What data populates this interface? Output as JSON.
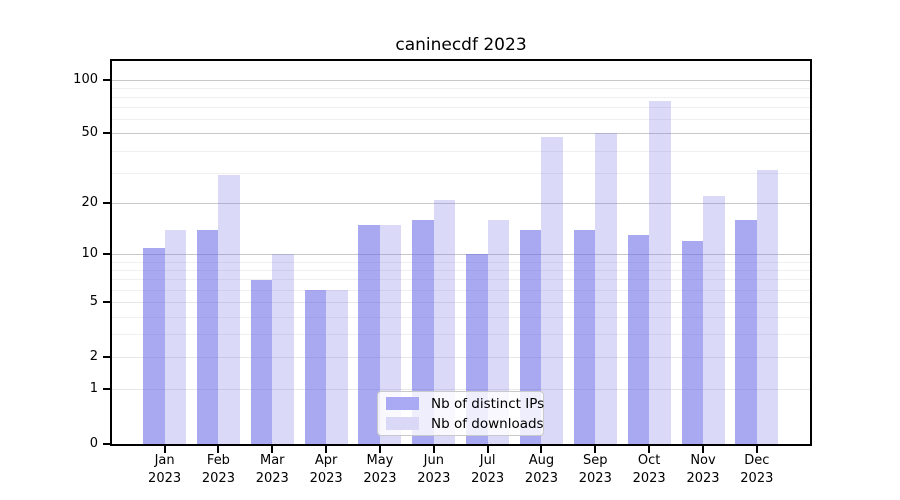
{
  "title": "caninecdf 2023",
  "colors": {
    "ips_bar": "#a9a9f4",
    "downloads_bar": "#d9d9f7",
    "ips_fill": "rgba(101,101,232,0.56)",
    "downloads_fill": "rgba(123,123,230,0.28)",
    "axis": "#000000",
    "grid_major": "#c8c8c8",
    "grid_minor": "#efefef"
  },
  "chart_data": {
    "type": "bar",
    "title": "caninecdf 2023",
    "categories": [
      "Jan 2023",
      "Feb 2023",
      "Mar 2023",
      "Apr 2023",
      "May 2023",
      "Jun 2023",
      "Jul 2023",
      "Aug 2023",
      "Sep 2023",
      "Oct 2023",
      "Nov 2023",
      "Dec 2023"
    ],
    "series": [
      {
        "name": "Nb of distinct IPs",
        "color": "#a9a9f4",
        "fill": "rgba(101,101,232,0.56)",
        "values": [
          11,
          14,
          7,
          6,
          15,
          16,
          10,
          14,
          14,
          13,
          12,
          16
        ]
      },
      {
        "name": "Nb of downloads",
        "color": "#d9d9f7",
        "fill": "rgba(123,123,230,0.28)",
        "values": [
          14,
          29,
          10,
          6,
          15,
          21,
          16,
          48,
          50,
          76,
          22,
          31
        ]
      }
    ],
    "xlabel": "",
    "ylabel": "",
    "y_scale": "log1p",
    "y_ticks": [
      0,
      1,
      2,
      5,
      10,
      20,
      50,
      100
    ],
    "y_minor_ticks": [
      3,
      4,
      6,
      7,
      8,
      9,
      30,
      40,
      60,
      70,
      80,
      90
    ],
    "ylim": [
      0,
      125
    ],
    "grid": true,
    "legend_position": "lower center"
  },
  "legend": {
    "items": [
      {
        "label": "Nb of distinct IPs"
      },
      {
        "label": "Nb of downloads"
      }
    ]
  }
}
